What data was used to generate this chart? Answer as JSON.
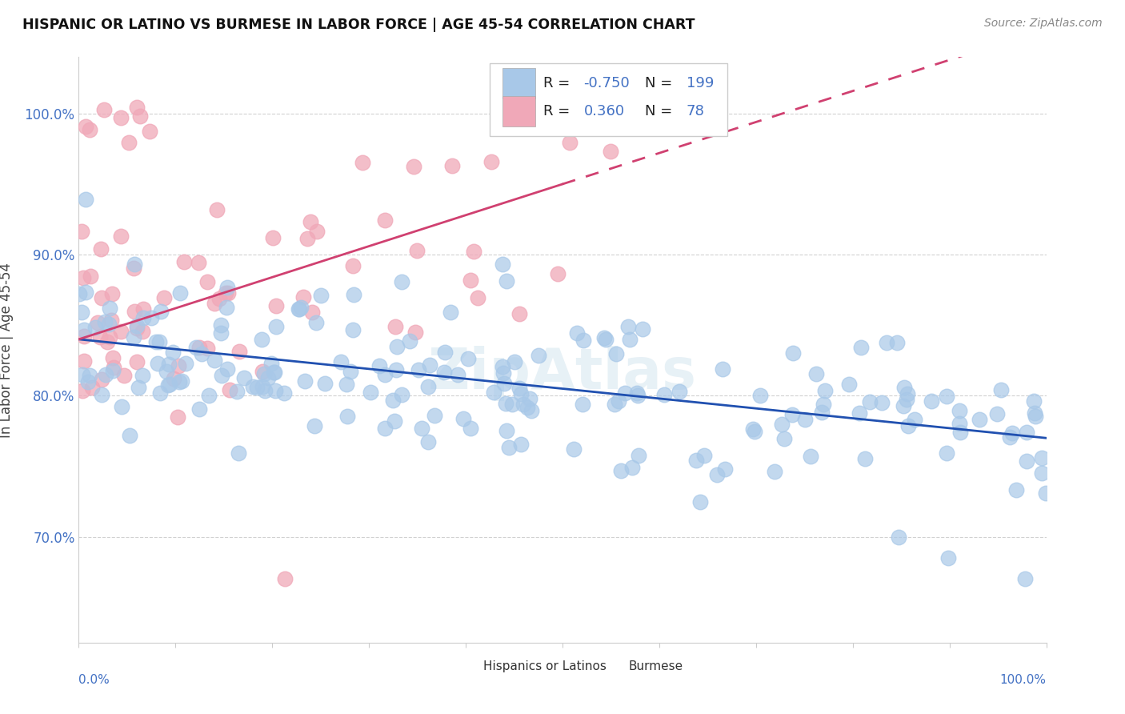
{
  "title": "HISPANIC OR LATINO VS BURMESE IN LABOR FORCE | AGE 45-54 CORRELATION CHART",
  "source": "Source: ZipAtlas.com",
  "ylabel": "In Labor Force | Age 45-54",
  "blue_R": -0.75,
  "blue_N": 199,
  "pink_R": 0.36,
  "pink_N": 78,
  "blue_color": "#a8c8e8",
  "pink_color": "#f0a8b8",
  "blue_line_color": "#2050b0",
  "pink_line_color": "#d04070",
  "blue_label": "Hispanics or Latinos",
  "pink_label": "Burmese",
  "xlim": [
    0.0,
    1.0
  ],
  "ylim": [
    0.625,
    1.04
  ],
  "yticks": [
    0.7,
    0.8,
    0.9,
    1.0
  ],
  "ytick_labels": [
    "70.0%",
    "80.0%",
    "90.0%",
    "100.0%"
  ],
  "blue_seed": 12,
  "pink_seed": 77,
  "legend_R_color": "#4472c4",
  "watermark": "ZipAtlas",
  "watermark_color": "#d8e8f0"
}
